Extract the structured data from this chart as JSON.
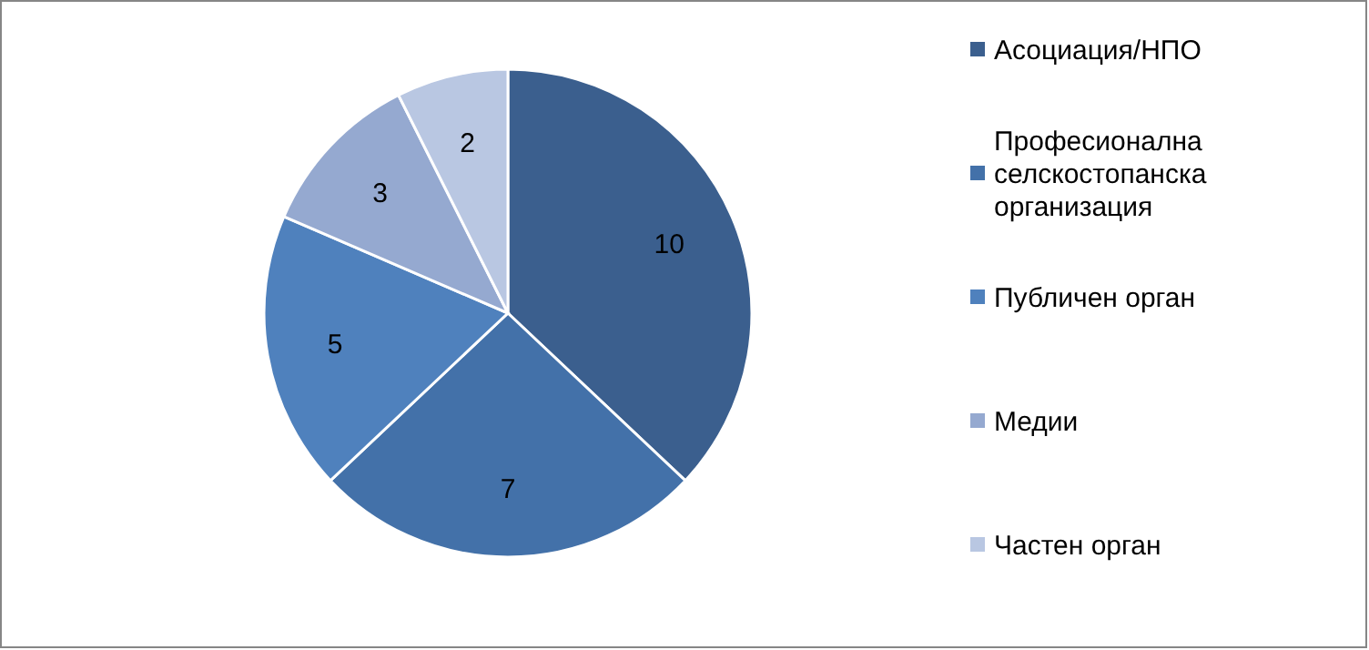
{
  "chart_data": {
    "type": "pie",
    "categories": [
      "Асоциация/НПО",
      "Професионална селскостопанска организация",
      "Публичен орган",
      "Медии",
      "Частен орган"
    ],
    "values": [
      10,
      7,
      5,
      3,
      2
    ],
    "colors": [
      "#3b5f8e",
      "#4371a9",
      "#4f81bd",
      "#95a9d0",
      "#b9c7e2"
    ],
    "data_labels": true,
    "legend": "right"
  }
}
